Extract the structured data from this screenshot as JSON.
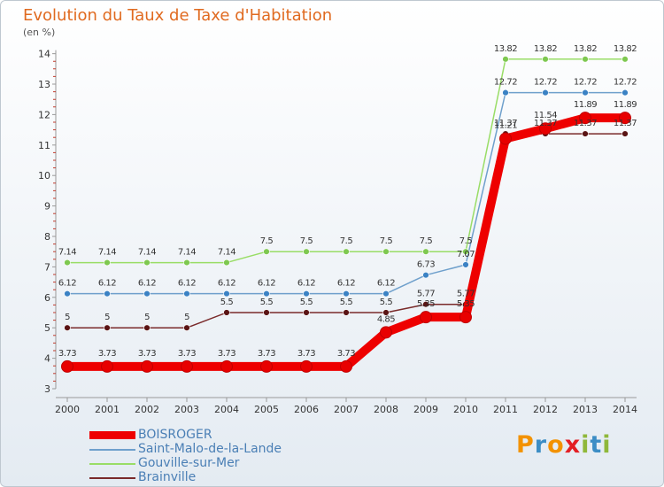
{
  "title": "Evolution du Taux de Taxe d'Habitation",
  "unit": "(en %)",
  "brand": {
    "letters": [
      "P",
      "r",
      "o",
      "x",
      "i",
      "t",
      "i"
    ],
    "colors": [
      "#f39200",
      "#3c8dc5",
      "#f39200",
      "#e31e24",
      "#8fb83a",
      "#3c8dc5",
      "#8fb83a"
    ]
  },
  "chart_data": {
    "type": "line",
    "title": "Evolution du Taux de Taxe d'Habitation",
    "ylabel": "(en %)",
    "xlabel": "",
    "ylim": [
      3,
      14
    ],
    "grid": false,
    "legend_position": "bottom-left",
    "x": [
      "2000",
      "2001",
      "2002",
      "2003",
      "2004",
      "2005",
      "2006",
      "2007",
      "2008",
      "2009",
      "2010",
      "2011",
      "2012",
      "2013",
      "2014"
    ],
    "yticks": [
      "3",
      "4",
      "5",
      "6",
      "7",
      "8",
      "9",
      "10",
      "11",
      "12",
      "13",
      "14"
    ],
    "series": [
      {
        "name": "BOISROGER",
        "color": "#ee0000",
        "marker": "#e80000",
        "values": [
          3.73,
          3.73,
          3.73,
          3.73,
          3.73,
          3.73,
          3.73,
          3.73,
          4.85,
          5.35,
          5.35,
          11.21,
          11.54,
          11.89,
          11.89
        ],
        "labels": [
          "3.73",
          "3.73",
          "3.73",
          "3.73",
          "3.73",
          "3.73",
          "3.73",
          "3.73",
          "4.85",
          "5.35",
          "5.35",
          "11.21",
          "11.54",
          "11.89",
          "11.89"
        ]
      },
      {
        "name": "Saint-Malo-de-la-Lande",
        "color": "#6fa0cc",
        "marker": "#3b82c4",
        "values": [
          6.12,
          6.12,
          6.12,
          6.12,
          6.12,
          6.12,
          6.12,
          6.12,
          6.12,
          6.73,
          7.07,
          12.72,
          12.72,
          12.72,
          12.72
        ],
        "labels": [
          "6.12",
          "6.12",
          "6.12",
          "6.12",
          "6.12",
          "6.12",
          "6.12",
          "6.12",
          "6.12",
          "6.73",
          "7.07",
          "12.72",
          "12.72",
          "12.72",
          "12.72"
        ]
      },
      {
        "name": "Gouville-sur-Mer",
        "color": "#99dd66",
        "marker": "#7ec850",
        "values": [
          7.14,
          7.14,
          7.14,
          7.14,
          7.14,
          7.5,
          7.5,
          7.5,
          7.5,
          7.5,
          7.5,
          13.82,
          13.82,
          13.82,
          13.82
        ],
        "labels": [
          "7.14",
          "7.14",
          "7.14",
          "7.14",
          "7.14",
          "7.5",
          "7.5",
          "7.5",
          "7.5",
          "7.5",
          "7.5",
          "13.82",
          "13.82",
          "13.82",
          "13.82"
        ]
      },
      {
        "name": "Brainville",
        "color": "#7a2a2a",
        "marker": "#5a1414",
        "values": [
          5,
          5,
          5,
          5,
          5.5,
          5.5,
          5.5,
          5.5,
          5.5,
          5.77,
          5.77,
          11.37,
          11.37,
          11.37,
          11.37
        ],
        "labels": [
          "5",
          "5",
          "5",
          "5",
          "5.5",
          "5.5",
          "5.5",
          "5.5",
          "5.5",
          "5.77",
          "5.77",
          "11.37",
          "11.37",
          "11.37",
          "11.37"
        ]
      }
    ]
  }
}
